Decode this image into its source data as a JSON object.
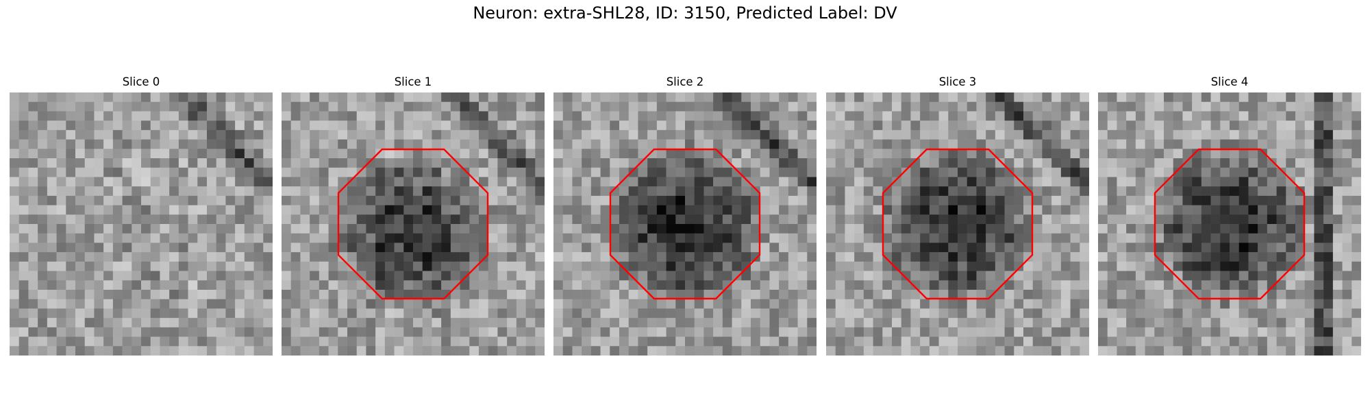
{
  "figure": {
    "title": "Neuron: extra-SHL28, ID: 3150, Predicted Label: DV"
  },
  "panels": [
    {
      "title": "Slice 0",
      "contour": false,
      "blob_strength": 0.0,
      "dark_corner": "top-right"
    },
    {
      "title": "Slice 1",
      "contour": true,
      "blob_strength": 0.75,
      "dark_corner": "top-right"
    },
    {
      "title": "Slice 2",
      "contour": true,
      "blob_strength": 0.85,
      "dark_corner": "top-right"
    },
    {
      "title": "Slice 3",
      "contour": true,
      "blob_strength": 0.8,
      "dark_corner": "top-right"
    },
    {
      "title": "Slice 4",
      "contour": true,
      "blob_strength": 0.8,
      "dark_corner": "right-edge"
    }
  ],
  "colors": {
    "contour": "#ff0000",
    "background": "#ffffff"
  },
  "image": {
    "colormap": "grayscale",
    "grid_cells": 28
  }
}
